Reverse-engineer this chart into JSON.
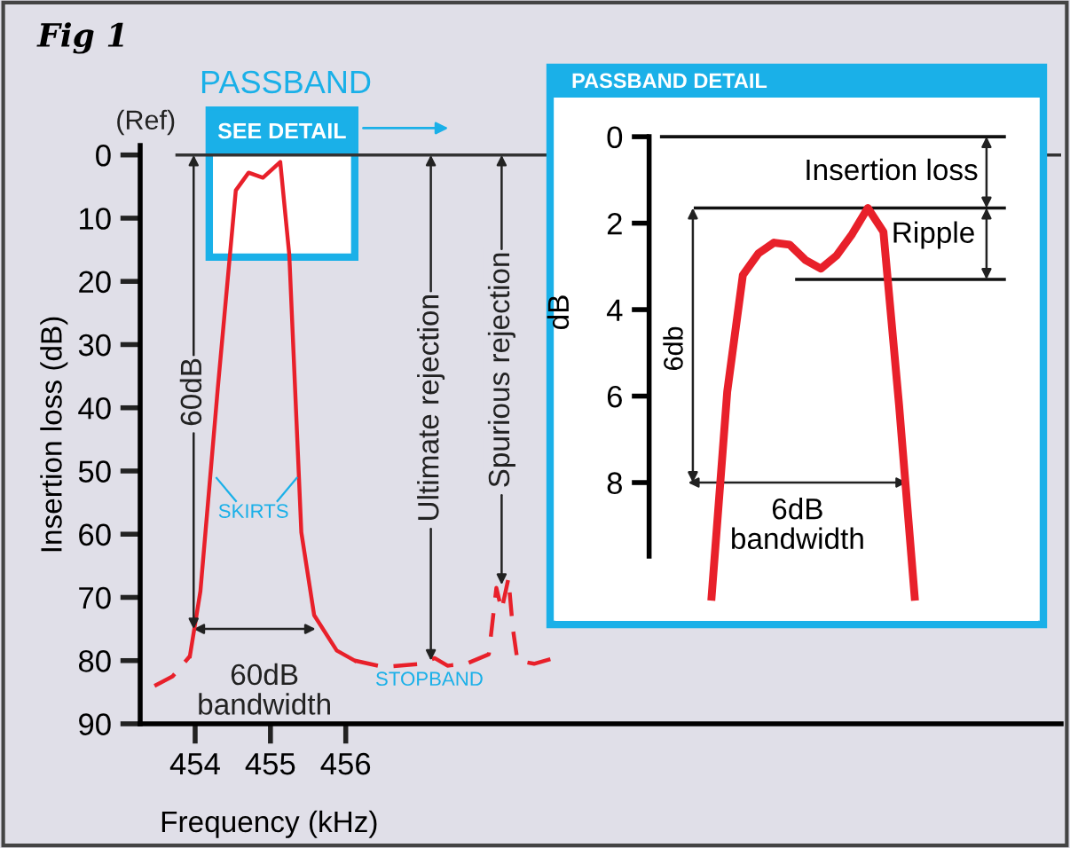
{
  "chart_data": [
    {
      "type": "line",
      "title": "Fig 1",
      "xlabel": "Frequency (kHz)",
      "ylabel": "Insertion loss (dB)",
      "xlim": [
        453.27,
        465.5
      ],
      "xticks": [
        454,
        455,
        456
      ],
      "ylim": [
        90,
        -1.5
      ],
      "yticks": [
        0,
        10,
        20,
        30,
        40,
        50,
        60,
        70,
        80,
        90
      ],
      "series": [
        {
          "color": "#e8202a",
          "line_style": "dashed",
          "x": [
            453.46,
            453.7,
            453.93
          ],
          "values": [
            84,
            82.5,
            79.3
          ]
        },
        {
          "color": "#e8202a",
          "line_style": "solid",
          "x": [
            453.93,
            454.07,
            454.3,
            454.54,
            454.71,
            454.9,
            455.13,
            455.25,
            455.41,
            455.58,
            455.88,
            456.12
          ],
          "values": [
            79.3,
            69,
            37,
            5.6,
            2.8,
            3.6,
            1.1,
            15.8,
            59.7,
            72.8,
            78.4,
            80
          ]
        },
        {
          "color": "#e8202a",
          "line_style": "dashed",
          "x": [
            456.12,
            456.5,
            457.0,
            457.18,
            457.35,
            457.6,
            457.9,
            458.0,
            458.07,
            458.16,
            458.22,
            458.28,
            458.5,
            458.8
          ],
          "values": [
            80,
            81,
            80.5,
            79.6,
            80.8,
            80.5,
            79,
            68.5,
            72,
            67,
            75,
            80,
            80.5,
            79.5
          ]
        }
      ],
      "ref_lines": [
        {
          "axis": "y",
          "value": 0,
          "color": "#333333"
        }
      ],
      "annotations": [
        "(Ref)",
        "PASSBAND",
        "SEE DETAIL",
        {
          "text": "60dB",
          "x": 453.98,
          "y": 75
        },
        {
          "text": "60dB\nbandwidth",
          "x": 455.6,
          "y": 75
        },
        {
          "text": "Ultimate rejection",
          "x": 457.13,
          "y": 80
        },
        {
          "text": "Spurious rejection",
          "x": 458.07,
          "y": 68
        },
        "SKIRTS",
        "STOPBAND"
      ]
    },
    {
      "type": "line",
      "title": "PASSBAND DETAIL",
      "ylabel": "dB",
      "ylim": [
        11.2,
        -0.7
      ],
      "yticks": [
        0,
        2,
        4,
        6,
        8
      ],
      "tick_labels": "y",
      "categories": [
        null,
        null,
        null,
        null,
        null,
        null,
        null,
        null,
        null,
        null,
        null,
        null,
        null,
        null
      ],
      "series": [
        {
          "color": "#e8202a",
          "values": [
            10.64,
            5.9,
            3.2,
            2.7,
            2.45,
            2.5,
            2.85,
            3.05,
            2.75,
            2.25,
            1.65,
            2.2,
            6.2,
            10.64
          ]
        }
      ],
      "ref_lines": [
        {
          "axis": "y",
          "value": 0,
          "color": "#111111"
        },
        {
          "axis": "y",
          "value": 1.65,
          "color": "#111111"
        },
        {
          "axis": "y",
          "value": 3.3,
          "color": "#111111"
        }
      ],
      "annotations": [
        "Insertion loss",
        "Ripple",
        "6db",
        "6dB\nbandwidth"
      ]
    }
  ]
}
